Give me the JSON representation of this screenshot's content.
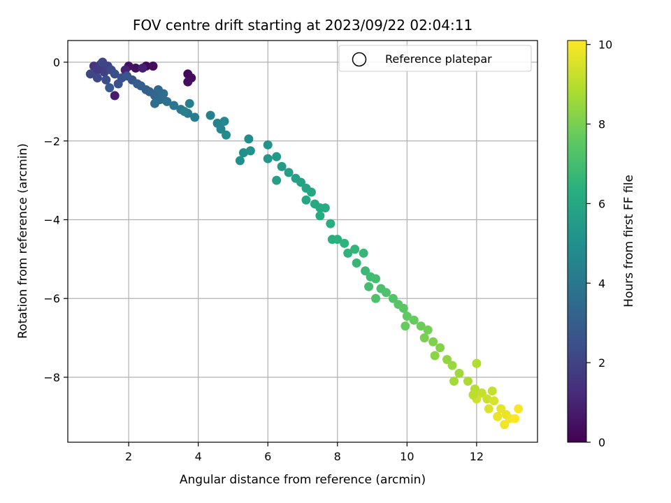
{
  "chart_data": {
    "type": "scatter",
    "title": "FOV centre drift starting at 2023/09/22 02:04:11",
    "xlabel": "Angular distance from reference (arcmin)",
    "ylabel": "Rotation from reference (arcmin)",
    "xlim": [
      0.25,
      13.75
    ],
    "ylim": [
      -9.65,
      0.55
    ],
    "xticks": [
      2,
      4,
      6,
      8,
      10,
      12
    ],
    "yticks": [
      0,
      -2,
      -4,
      -6,
      -8
    ],
    "grid": true,
    "legend": {
      "placement": "top-right",
      "entries": [
        "Reference platepar"
      ]
    },
    "colorbar": {
      "label": "Hours from first FF file",
      "range": [
        0,
        10.1
      ],
      "ticks": [
        0,
        2,
        4,
        6,
        8,
        10
      ],
      "colormap": "viridis"
    },
    "series": [
      {
        "columns": [
          "x",
          "y",
          "hours"
        ],
        "points": [
          [
            2.5,
            -0.1,
            0.2
          ],
          [
            2.7,
            -0.1,
            0.3
          ],
          [
            2.2,
            -0.15,
            0.4
          ],
          [
            2.0,
            -0.1,
            0.5
          ],
          [
            3.7,
            -0.3,
            0.2
          ],
          [
            3.8,
            -0.4,
            0.3
          ],
          [
            3.7,
            -0.5,
            0.4
          ],
          [
            1.6,
            -0.85,
            0.8
          ],
          [
            2.4,
            -0.15,
            0.9
          ],
          [
            1.9,
            -0.2,
            1.0
          ],
          [
            1.0,
            -0.1,
            1.6
          ],
          [
            1.1,
            -0.2,
            1.7
          ],
          [
            1.2,
            -0.05,
            1.8
          ],
          [
            1.3,
            -0.25,
            1.9
          ],
          [
            1.4,
            -0.1,
            2.0
          ],
          [
            0.9,
            -0.3,
            2.1
          ],
          [
            1.1,
            -0.4,
            2.2
          ],
          [
            1.25,
            0.0,
            2.2
          ],
          [
            1.5,
            -0.2,
            2.3
          ],
          [
            1.35,
            -0.45,
            2.4
          ],
          [
            1.6,
            -0.3,
            2.4
          ],
          [
            1.7,
            -0.55,
            2.5
          ],
          [
            1.8,
            -0.4,
            2.5
          ],
          [
            1.95,
            -0.35,
            2.6
          ],
          [
            2.1,
            -0.45,
            2.7
          ],
          [
            1.45,
            -0.65,
            2.8
          ],
          [
            2.25,
            -0.55,
            2.9
          ],
          [
            2.35,
            -0.6,
            3.0
          ],
          [
            2.5,
            -0.7,
            3.1
          ],
          [
            2.6,
            -0.75,
            3.2
          ],
          [
            2.75,
            -0.85,
            3.3
          ],
          [
            2.85,
            -0.7,
            3.4
          ],
          [
            2.9,
            -0.95,
            3.5
          ],
          [
            3.0,
            -0.8,
            3.6
          ],
          [
            2.75,
            -1.05,
            3.7
          ],
          [
            3.1,
            -1.0,
            3.8
          ],
          [
            3.3,
            -1.1,
            3.9
          ],
          [
            3.5,
            -1.2,
            4.0
          ],
          [
            3.7,
            -1.3,
            4.1
          ],
          [
            3.9,
            -1.4,
            4.2
          ],
          [
            3.75,
            -1.05,
            4.3
          ],
          [
            3.6,
            -1.25,
            4.3
          ],
          [
            4.35,
            -1.35,
            4.4
          ],
          [
            4.55,
            -1.55,
            4.5
          ],
          [
            4.65,
            -1.7,
            4.6
          ],
          [
            4.75,
            -1.5,
            4.7
          ],
          [
            4.8,
            -1.85,
            4.8
          ],
          [
            5.45,
            -1.95,
            4.9
          ],
          [
            5.3,
            -2.3,
            5.0
          ],
          [
            5.2,
            -2.5,
            5.0
          ],
          [
            5.5,
            -2.25,
            5.1
          ],
          [
            6.0,
            -2.1,
            5.2
          ],
          [
            6.0,
            -2.45,
            5.3
          ],
          [
            6.25,
            -2.4,
            5.4
          ],
          [
            6.4,
            -2.65,
            5.5
          ],
          [
            6.6,
            -2.8,
            5.6
          ],
          [
            6.25,
            -3.0,
            5.6
          ],
          [
            6.8,
            -2.95,
            5.7
          ],
          [
            6.95,
            -3.05,
            5.8
          ],
          [
            7.1,
            -3.2,
            5.9
          ],
          [
            7.25,
            -3.3,
            6.0
          ],
          [
            7.1,
            -3.5,
            6.0
          ],
          [
            7.35,
            -3.6,
            6.1
          ],
          [
            7.5,
            -3.7,
            6.1
          ],
          [
            7.65,
            -3.7,
            6.2
          ],
          [
            7.5,
            -3.9,
            6.2
          ],
          [
            7.8,
            -4.1,
            6.3
          ],
          [
            7.85,
            -4.5,
            6.3
          ],
          [
            8.0,
            -4.5,
            6.4
          ],
          [
            8.2,
            -4.6,
            6.5
          ],
          [
            8.3,
            -4.85,
            6.5
          ],
          [
            8.5,
            -4.75,
            6.6
          ],
          [
            8.75,
            -4.85,
            6.7
          ],
          [
            8.55,
            -5.1,
            6.7
          ],
          [
            8.8,
            -5.3,
            6.8
          ],
          [
            8.95,
            -5.45,
            6.9
          ],
          [
            9.1,
            -5.5,
            7.0
          ],
          [
            8.9,
            -5.7,
            7.0
          ],
          [
            9.25,
            -5.75,
            7.1
          ],
          [
            9.4,
            -5.85,
            7.2
          ],
          [
            9.1,
            -6.0,
            7.2
          ],
          [
            9.6,
            -6.0,
            7.3
          ],
          [
            9.75,
            -6.15,
            7.4
          ],
          [
            9.9,
            -6.25,
            7.5
          ],
          [
            10.0,
            -6.45,
            7.6
          ],
          [
            10.2,
            -6.55,
            7.7
          ],
          [
            9.95,
            -6.7,
            7.7
          ],
          [
            10.4,
            -6.7,
            7.8
          ],
          [
            10.6,
            -6.8,
            7.9
          ],
          [
            10.5,
            -7.0,
            8.0
          ],
          [
            10.75,
            -7.1,
            8.1
          ],
          [
            10.95,
            -7.25,
            8.2
          ],
          [
            10.8,
            -7.45,
            8.3
          ],
          [
            11.15,
            -7.55,
            8.4
          ],
          [
            11.3,
            -7.7,
            8.5
          ],
          [
            11.5,
            -7.9,
            8.6
          ],
          [
            11.35,
            -8.1,
            8.7
          ],
          [
            11.75,
            -8.1,
            8.8
          ],
          [
            12.0,
            -7.65,
            8.9
          ],
          [
            11.95,
            -8.3,
            9.0
          ],
          [
            12.15,
            -8.4,
            9.2
          ],
          [
            12.3,
            -8.55,
            9.3
          ],
          [
            12.0,
            -8.55,
            9.4
          ],
          [
            12.5,
            -8.6,
            9.5
          ],
          [
            12.35,
            -8.8,
            9.6
          ],
          [
            12.7,
            -8.8,
            9.7
          ],
          [
            12.85,
            -8.95,
            9.8
          ],
          [
            12.95,
            -9.05,
            9.9
          ],
          [
            12.8,
            -9.2,
            9.9
          ],
          [
            13.2,
            -8.8,
            10.0
          ],
          [
            13.1,
            -9.05,
            10.1
          ],
          [
            12.6,
            -9.0,
            9.8
          ],
          [
            12.45,
            -8.35,
            9.2
          ],
          [
            11.9,
            -8.45,
            9.1
          ]
        ]
      }
    ]
  }
}
